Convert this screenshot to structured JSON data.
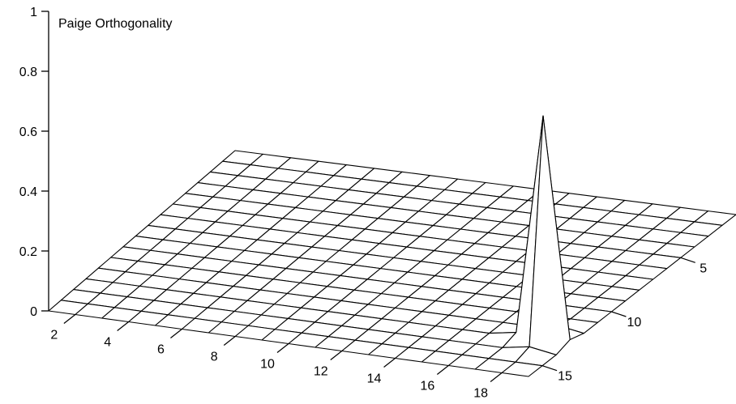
{
  "chart_data": {
    "type": "surface3d",
    "title": "Paige Orthogonality",
    "x_ticks": [
      "2",
      "4",
      "6",
      "8",
      "10",
      "12",
      "14",
      "16",
      "18"
    ],
    "y_ticks": [
      "5",
      "10",
      "15"
    ],
    "z_ticks": [
      "0",
      "0.2",
      "0.4",
      "0.6",
      "0.8",
      "1"
    ],
    "xlim": [
      1,
      19
    ],
    "ylim": [
      0,
      16
    ],
    "zlim": [
      0,
      1
    ],
    "grid_x": [
      1,
      19
    ],
    "grid_y": [
      1,
      16
    ],
    "peak": {
      "x": 18,
      "y": 13,
      "z": 0.75
    },
    "background_z": 0,
    "colors": {
      "surface": "#ffffff",
      "line": "#000000"
    }
  }
}
